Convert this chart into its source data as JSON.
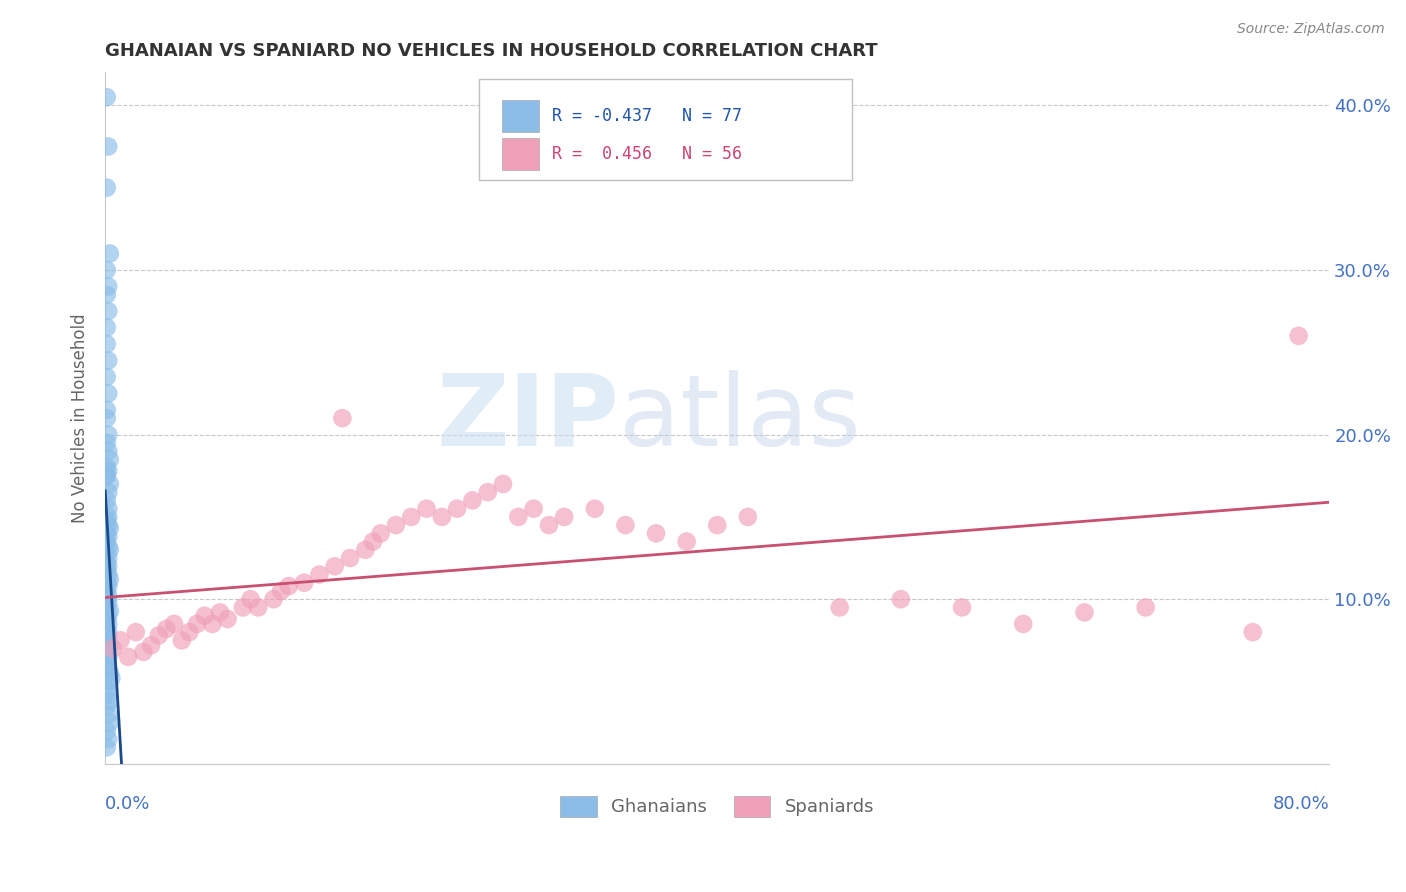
{
  "title": "GHANAIAN VS SPANIARD NO VEHICLES IN HOUSEHOLD CORRELATION CHART",
  "source": "Source: ZipAtlas.com",
  "ylabel": "No Vehicles in Household",
  "xlim": [
    0.0,
    0.8
  ],
  "ylim": [
    0.0,
    0.42
  ],
  "yticks": [
    0.0,
    0.1,
    0.2,
    0.3,
    0.4
  ],
  "ytick_labels": [
    "",
    "10.0%",
    "20.0%",
    "30.0%",
    "40.0%"
  ],
  "xticks": [
    0.0,
    0.1,
    0.2,
    0.3,
    0.4,
    0.5,
    0.6,
    0.7,
    0.8
  ],
  "color_ghanaian": "#8bbde8",
  "color_spaniard": "#f0a0b8",
  "color_line_ghanaian": "#1a4a8a",
  "color_line_spaniard": "#c85070",
  "watermark_zip": "ZIP",
  "watermark_atlas": "atlas",
  "ghanaian_x": [
    0.001,
    0.002,
    0.001,
    0.003,
    0.001,
    0.002,
    0.001,
    0.002,
    0.001,
    0.001,
    0.002,
    0.001,
    0.002,
    0.001,
    0.001,
    0.002,
    0.001,
    0.002,
    0.003,
    0.001,
    0.002,
    0.001,
    0.003,
    0.002,
    0.001,
    0.002,
    0.001,
    0.002,
    0.001,
    0.002,
    0.003,
    0.001,
    0.002,
    0.001,
    0.002,
    0.003,
    0.001,
    0.002,
    0.001,
    0.002,
    0.001,
    0.002,
    0.003,
    0.001,
    0.002,
    0.001,
    0.002,
    0.001,
    0.002,
    0.001,
    0.003,
    0.002,
    0.001,
    0.002,
    0.001,
    0.002,
    0.001,
    0.002,
    0.001,
    0.002,
    0.001,
    0.002,
    0.001,
    0.001,
    0.002,
    0.003,
    0.004,
    0.002,
    0.001,
    0.002,
    0.003,
    0.001,
    0.002,
    0.003,
    0.001,
    0.002,
    0.001
  ],
  "ghanaian_y": [
    0.405,
    0.375,
    0.35,
    0.31,
    0.3,
    0.29,
    0.285,
    0.275,
    0.265,
    0.255,
    0.245,
    0.235,
    0.225,
    0.215,
    0.21,
    0.2,
    0.195,
    0.19,
    0.185,
    0.18,
    0.178,
    0.175,
    0.17,
    0.165,
    0.16,
    0.155,
    0.175,
    0.15,
    0.148,
    0.145,
    0.143,
    0.14,
    0.138,
    0.135,
    0.132,
    0.13,
    0.128,
    0.125,
    0.122,
    0.12,
    0.118,
    0.115,
    0.112,
    0.11,
    0.108,
    0.105,
    0.102,
    0.1,
    0.098,
    0.095,
    0.093,
    0.09,
    0.088,
    0.085,
    0.082,
    0.08,
    0.078,
    0.075,
    0.072,
    0.07,
    0.068,
    0.065,
    0.062,
    0.06,
    0.058,
    0.055,
    0.052,
    0.05,
    0.045,
    0.042,
    0.038,
    0.035,
    0.03,
    0.025,
    0.02,
    0.015,
    0.01
  ],
  "spaniard_x": [
    0.005,
    0.01,
    0.015,
    0.02,
    0.025,
    0.03,
    0.035,
    0.04,
    0.045,
    0.05,
    0.055,
    0.06,
    0.065,
    0.07,
    0.075,
    0.08,
    0.09,
    0.095,
    0.1,
    0.11,
    0.115,
    0.12,
    0.13,
    0.14,
    0.15,
    0.155,
    0.16,
    0.17,
    0.175,
    0.18,
    0.19,
    0.2,
    0.21,
    0.22,
    0.23,
    0.24,
    0.25,
    0.26,
    0.27,
    0.28,
    0.29,
    0.3,
    0.32,
    0.34,
    0.36,
    0.38,
    0.4,
    0.42,
    0.48,
    0.52,
    0.56,
    0.6,
    0.64,
    0.68,
    0.75,
    0.78
  ],
  "spaniard_y": [
    0.07,
    0.075,
    0.065,
    0.08,
    0.068,
    0.072,
    0.078,
    0.082,
    0.085,
    0.075,
    0.08,
    0.085,
    0.09,
    0.085,
    0.092,
    0.088,
    0.095,
    0.1,
    0.095,
    0.1,
    0.105,
    0.108,
    0.11,
    0.115,
    0.12,
    0.21,
    0.125,
    0.13,
    0.135,
    0.14,
    0.145,
    0.15,
    0.155,
    0.15,
    0.155,
    0.16,
    0.165,
    0.17,
    0.15,
    0.155,
    0.145,
    0.15,
    0.155,
    0.145,
    0.14,
    0.135,
    0.145,
    0.15,
    0.095,
    0.1,
    0.095,
    0.085,
    0.092,
    0.095,
    0.08,
    0.26
  ]
}
